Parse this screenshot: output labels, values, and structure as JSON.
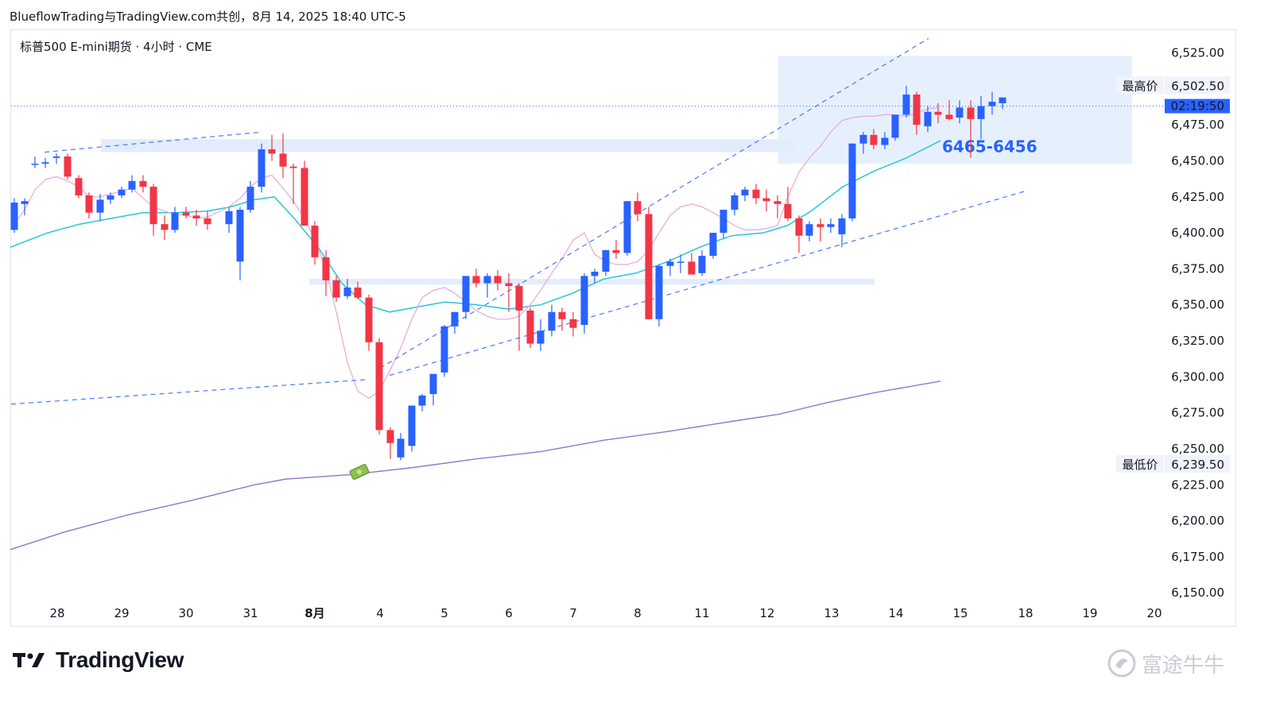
{
  "header": {
    "title": "BlueflowTrading与TradingView.com共创，8月 14, 2025 18:40 UTC-5"
  },
  "symbol": {
    "label": "标普500 E-mini期货 · 4小时 · CME"
  },
  "footer": {
    "logo_text": "TradingView",
    "watermark_text": "富途牛牛"
  },
  "colors": {
    "up": "#2962ff",
    "down": "#f23645",
    "ema_fast": "#e9a6d8",
    "ema_mid": "#26c6da",
    "ema_slow": "#9575cd",
    "trend_line": "#2962ff",
    "zone": "#dfeafd"
  },
  "chart_data": {
    "type": "candlestick",
    "y_ticks": [
      "6,525.00",
      "6,475.00",
      "6,450.00",
      "6,425.00",
      "6,400.00",
      "6,375.00",
      "6,350.00",
      "6,325.00",
      "6,300.00",
      "6,275.00",
      "6,250.00",
      "6,225.00",
      "6,200.00",
      "6,175.00",
      "6,150.00"
    ],
    "y_tick_values": [
      6525,
      6475,
      6450,
      6425,
      6400,
      6375,
      6350,
      6325,
      6300,
      6275,
      6250,
      6225,
      6200,
      6175,
      6150
    ],
    "ylim": [
      6138,
      6548
    ],
    "x_ticks": [
      "28",
      "29",
      "30",
      "31",
      "8月",
      "4",
      "5",
      "6",
      "7",
      "8",
      "11",
      "12",
      "13",
      "14",
      "15",
      "18",
      "19",
      "20"
    ],
    "x_bold_tick": "8月",
    "high_label": {
      "text": "最高价",
      "value": "6,502.50",
      "price": 6502.5
    },
    "low_label": {
      "text": "最低价",
      "value": "6,239.50",
      "price": 6239.5
    },
    "current": {
      "time_label": "02:19:50",
      "price": 6488
    },
    "zone_label": "6465-6456",
    "zones": [
      {
        "from_bar": 14,
        "to_bar": 119,
        "low": 6456,
        "high": 6465
      },
      {
        "from_bar": 52,
        "to_bar": 136,
        "low": 6364,
        "high": 6368
      },
      {
        "from_bar": 120,
        "to_bar": 174,
        "low": 6448,
        "high": 6523
      }
    ],
    "candles": [
      [
        6402,
        6424,
        6400,
        6421
      ],
      [
        6420,
        6424,
        6412,
        6422
      ],
      [
        6448,
        6453,
        6445,
        6448
      ],
      [
        6448,
        6452,
        6445,
        6449
      ],
      [
        6452,
        6455,
        6448,
        6453
      ],
      [
        6453,
        6455,
        6437,
        6439
      ],
      [
        6438,
        6440,
        6424,
        6426
      ],
      [
        6426,
        6428,
        6410,
        6414
      ],
      [
        6414,
        6427,
        6408,
        6423
      ],
      [
        6423,
        6428,
        6420,
        6426
      ],
      [
        6426,
        6432,
        6424,
        6430
      ],
      [
        6430,
        6440,
        6428,
        6436
      ],
      [
        6436,
        6440,
        6428,
        6432
      ],
      [
        6432,
        6434,
        6398,
        6406
      ],
      [
        6406,
        6412,
        6395,
        6402
      ],
      [
        6402,
        6418,
        6400,
        6414
      ],
      [
        6414,
        6418,
        6410,
        6412
      ],
      [
        6412,
        6416,
        6405,
        6410
      ],
      [
        6410,
        6415,
        6402,
        6406
      ],
      [
        6406,
        6418,
        6400,
        6415
      ],
      [
        6380,
        6418,
        6367,
        6416
      ],
      [
        6416,
        6436,
        6414,
        6432
      ],
      [
        6432,
        6462,
        6428,
        6458
      ],
      [
        6458,
        6468,
        6450,
        6455
      ],
      [
        6455,
        6469,
        6438,
        6446
      ],
      [
        6446,
        6448,
        6420,
        6445
      ],
      [
        6445,
        6450,
        6405,
        6405
      ],
      [
        6405,
        6408,
        6378,
        6383
      ],
      [
        6383,
        6388,
        6356,
        6367
      ],
      [
        6367,
        6370,
        6352,
        6355
      ],
      [
        6356,
        6368,
        6354,
        6362
      ],
      [
        6362,
        6366,
        6354,
        6355
      ],
      [
        6355,
        6357,
        6318,
        6324
      ],
      [
        6324,
        6327,
        6260,
        6263
      ],
      [
        6263,
        6265,
        6243,
        6254
      ],
      [
        6244,
        6261,
        6242,
        6257
      ],
      [
        6252,
        6280,
        6248,
        6280
      ],
      [
        6280,
        6288,
        6276,
        6287
      ],
      [
        6288,
        6300,
        6280,
        6302
      ],
      [
        6303,
        6336,
        6300,
        6335
      ],
      [
        6335,
        6345,
        6330,
        6345
      ],
      [
        6345,
        6370,
        6340,
        6370
      ],
      [
        6370,
        6375,
        6362,
        6365
      ],
      [
        6365,
        6372,
        6355,
        6370
      ],
      [
        6370,
        6374,
        6360,
        6365
      ],
      [
        6365,
        6372,
        6345,
        6363
      ],
      [
        6363,
        6365,
        6318,
        6346
      ],
      [
        6346,
        6348,
        6320,
        6323
      ],
      [
        6323,
        6340,
        6318,
        6332
      ],
      [
        6332,
        6350,
        6328,
        6345
      ],
      [
        6345,
        6348,
        6332,
        6340
      ],
      [
        6340,
        6345,
        6328,
        6334
      ],
      [
        6336,
        6372,
        6330,
        6370
      ],
      [
        6370,
        6375,
        6365,
        6373
      ],
      [
        6373,
        6388,
        6370,
        6388
      ],
      [
        6388,
        6395,
        6382,
        6386
      ],
      [
        6386,
        6422,
        6384,
        6422
      ],
      [
        6422,
        6428,
        6408,
        6413
      ],
      [
        6413,
        6418,
        6340,
        6340
      ],
      [
        6340,
        6378,
        6335,
        6377
      ],
      [
        6377,
        6382,
        6370,
        6380
      ],
      [
        6380,
        6385,
        6372,
        6380
      ],
      [
        6380,
        6386,
        6372,
        6371
      ],
      [
        6372,
        6388,
        6370,
        6384
      ],
      [
        6384,
        6400,
        6382,
        6400
      ],
      [
        6400,
        6416,
        6396,
        6416
      ],
      [
        6416,
        6428,
        6412,
        6426
      ],
      [
        6426,
        6432,
        6422,
        6430
      ],
      [
        6430,
        6434,
        6420,
        6424
      ],
      [
        6424,
        6430,
        6415,
        6422
      ],
      [
        6422,
        6426,
        6410,
        6420
      ],
      [
        6420,
        6432,
        6408,
        6410
      ],
      [
        6410,
        6412,
        6386,
        6398
      ],
      [
        6398,
        6408,
        6394,
        6406
      ],
      [
        6406,
        6410,
        6394,
        6404
      ],
      [
        6404,
        6410,
        6400,
        6406
      ],
      [
        6399,
        6413,
        6390,
        6410
      ],
      [
        6410,
        6462,
        6408,
        6462
      ],
      [
        6462,
        6470,
        6455,
        6468
      ],
      [
        6468,
        6472,
        6458,
        6461
      ],
      [
        6461,
        6470,
        6458,
        6466
      ],
      [
        6466,
        6482,
        6464,
        6482
      ],
      [
        6482,
        6502,
        6480,
        6496
      ],
      [
        6496,
        6498,
        6468,
        6475
      ],
      [
        6474,
        6488,
        6470,
        6484
      ],
      [
        6484,
        6490,
        6476,
        6482
      ],
      [
        6482,
        6492,
        6478,
        6479
      ],
      [
        6480,
        6492,
        6476,
        6487
      ],
      [
        6487,
        6492,
        6452,
        6479
      ],
      [
        6479,
        6495,
        6465,
        6488
      ],
      [
        6488,
        6498,
        6482,
        6491
      ],
      [
        6490,
        6494,
        6486,
        6494
      ]
    ],
    "candle_x": [
      18,
      31,
      44,
      57,
      71,
      85,
      99,
      112,
      126,
      139,
      153,
      166,
      180,
      193,
      207,
      220,
      234,
      247,
      261,
      288,
      302,
      315,
      329,
      342,
      356,
      369,
      383,
      396,
      410,
      423,
      437,
      450,
      464,
      477,
      491,
      504,
      518,
      531,
      545,
      559,
      572,
      586,
      599,
      613,
      626,
      640,
      653,
      667,
      680,
      694,
      707,
      721,
      735,
      748,
      762,
      775,
      789,
      802,
      816,
      829,
      843,
      856,
      870,
      883,
      897,
      910,
      924,
      937,
      951,
      964,
      978,
      991,
      1005,
      1018,
      1032,
      1045,
      1059,
      1072,
      1086,
      1099,
      1113,
      1126,
      1140,
      1153,
      1167,
      1180,
      1194,
      1207,
      1221,
      1234,
      1248,
      1261
    ],
    "ema_fast": [
      [
        18,
        6406
      ],
      [
        31,
        6416
      ],
      [
        44,
        6430
      ],
      [
        57,
        6437
      ],
      [
        71,
        6439
      ],
      [
        85,
        6436
      ],
      [
        99,
        6432
      ],
      [
        112,
        6425
      ],
      [
        126,
        6425
      ],
      [
        139,
        6427
      ],
      [
        153,
        6429
      ],
      [
        166,
        6431
      ],
      [
        180,
        6424
      ],
      [
        193,
        6418
      ],
      [
        207,
        6415
      ],
      [
        220,
        6413
      ],
      [
        234,
        6412
      ],
      [
        247,
        6410
      ],
      [
        261,
        6411
      ],
      [
        288,
        6418
      ],
      [
        302,
        6424
      ],
      [
        315,
        6432
      ],
      [
        329,
        6438
      ],
      [
        342,
        6440
      ],
      [
        356,
        6431
      ],
      [
        369,
        6422
      ],
      [
        383,
        6410
      ],
      [
        396,
        6395
      ],
      [
        410,
        6375
      ],
      [
        423,
        6345
      ],
      [
        437,
        6310
      ],
      [
        450,
        6290
      ],
      [
        464,
        6285
      ],
      [
        477,
        6290
      ],
      [
        491,
        6305
      ],
      [
        504,
        6320
      ],
      [
        518,
        6340
      ],
      [
        531,
        6355
      ],
      [
        545,
        6360
      ],
      [
        559,
        6362
      ],
      [
        572,
        6358
      ],
      [
        586,
        6352
      ],
      [
        599,
        6346
      ],
      [
        613,
        6342
      ],
      [
        626,
        6340
      ],
      [
        640,
        6340
      ],
      [
        653,
        6342
      ],
      [
        667,
        6350
      ],
      [
        680,
        6360
      ],
      [
        694,
        6372
      ],
      [
        707,
        6382
      ],
      [
        721,
        6395
      ],
      [
        735,
        6400
      ],
      [
        748,
        6385
      ],
      [
        762,
        6380
      ],
      [
        775,
        6378
      ],
      [
        789,
        6378
      ],
      [
        802,
        6380
      ],
      [
        816,
        6388
      ],
      [
        829,
        6400
      ],
      [
        843,
        6412
      ],
      [
        856,
        6418
      ],
      [
        870,
        6420
      ],
      [
        883,
        6418
      ],
      [
        897,
        6414
      ],
      [
        910,
        6410
      ],
      [
        924,
        6405
      ],
      [
        937,
        6402
      ],
      [
        951,
        6402
      ],
      [
        964,
        6403
      ],
      [
        978,
        6405
      ],
      [
        991,
        6425
      ],
      [
        1005,
        6442
      ],
      [
        1018,
        6452
      ],
      [
        1032,
        6460
      ],
      [
        1045,
        6470
      ],
      [
        1059,
        6478
      ],
      [
        1072,
        6480
      ],
      [
        1086,
        6481
      ],
      [
        1099,
        6481
      ],
      [
        1113,
        6482
      ],
      [
        1126,
        6482
      ],
      [
        1140,
        6481
      ],
      [
        1153,
        6483
      ],
      [
        1167,
        6486
      ],
      [
        1180,
        6487
      ]
    ],
    "ema_mid": [
      [
        13,
        6390
      ],
      [
        60,
        6400
      ],
      [
        100,
        6406
      ],
      [
        140,
        6410
      ],
      [
        180,
        6414
      ],
      [
        220,
        6414
      ],
      [
        260,
        6415
      ],
      [
        290,
        6418
      ],
      [
        320,
        6423
      ],
      [
        345,
        6425
      ],
      [
        370,
        6410
      ],
      [
        400,
        6390
      ],
      [
        430,
        6365
      ],
      [
        460,
        6350
      ],
      [
        490,
        6345
      ],
      [
        520,
        6348
      ],
      [
        560,
        6352
      ],
      [
        600,
        6350
      ],
      [
        640,
        6347
      ],
      [
        680,
        6350
      ],
      [
        720,
        6358
      ],
      [
        760,
        6368
      ],
      [
        800,
        6372
      ],
      [
        840,
        6380
      ],
      [
        880,
        6390
      ],
      [
        920,
        6398
      ],
      [
        960,
        6400
      ],
      [
        990,
        6405
      ],
      [
        1020,
        6415
      ],
      [
        1060,
        6432
      ],
      [
        1100,
        6443
      ],
      [
        1140,
        6452
      ],
      [
        1183,
        6464
      ]
    ],
    "ema_slow": [
      [
        13,
        6180
      ],
      [
        80,
        6192
      ],
      [
        160,
        6204
      ],
      [
        240,
        6214
      ],
      [
        320,
        6225
      ],
      [
        360,
        6229
      ],
      [
        440,
        6232
      ],
      [
        520,
        6237
      ],
      [
        600,
        6243
      ],
      [
        680,
        6248
      ],
      [
        760,
        6256
      ],
      [
        840,
        6262
      ],
      [
        920,
        6269
      ],
      [
        980,
        6274
      ],
      [
        1040,
        6282
      ],
      [
        1100,
        6289
      ],
      [
        1183,
        6297
      ]
    ],
    "trend_lines": [
      {
        "x1": 14,
        "p1": 6281,
        "x2": 460,
        "p2": 6298
      },
      {
        "x1": 490,
        "p1": 6301,
        "x2": 1290,
        "p2": 6429
      },
      {
        "x1": 478,
        "p1": 6306,
        "x2": 1168,
        "p2": 6535
      },
      {
        "x1": 56,
        "p1": 6456,
        "x2": 330,
        "p2": 6470
      }
    ]
  }
}
